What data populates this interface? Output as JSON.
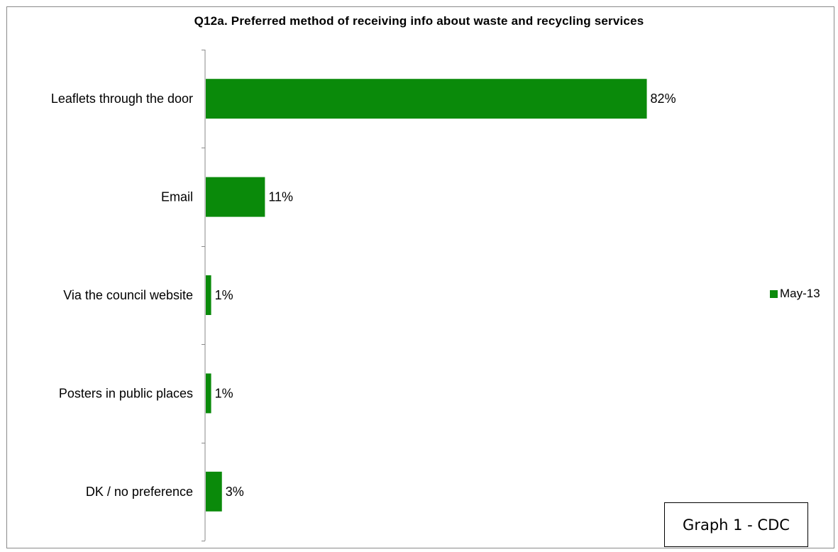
{
  "chart_data": {
    "type": "bar",
    "orientation": "horizontal",
    "title": "Q12a.  Preferred method of receiving info about waste and recycling services",
    "categories": [
      "Leaflets through the door",
      "Email",
      "Via the council website",
      "Posters in public places",
      "DK / no preference"
    ],
    "series": [
      {
        "name": "May-13",
        "values": [
          82,
          11,
          1,
          1,
          3
        ],
        "color": "#0a8a0a"
      }
    ],
    "value_labels": [
      "82%",
      "11%",
      "1%",
      "1%",
      "3%"
    ],
    "xlim": [
      0,
      100
    ],
    "grid": false,
    "legend": "right"
  },
  "annotation": {
    "label": "Graph 1 - CDC"
  }
}
